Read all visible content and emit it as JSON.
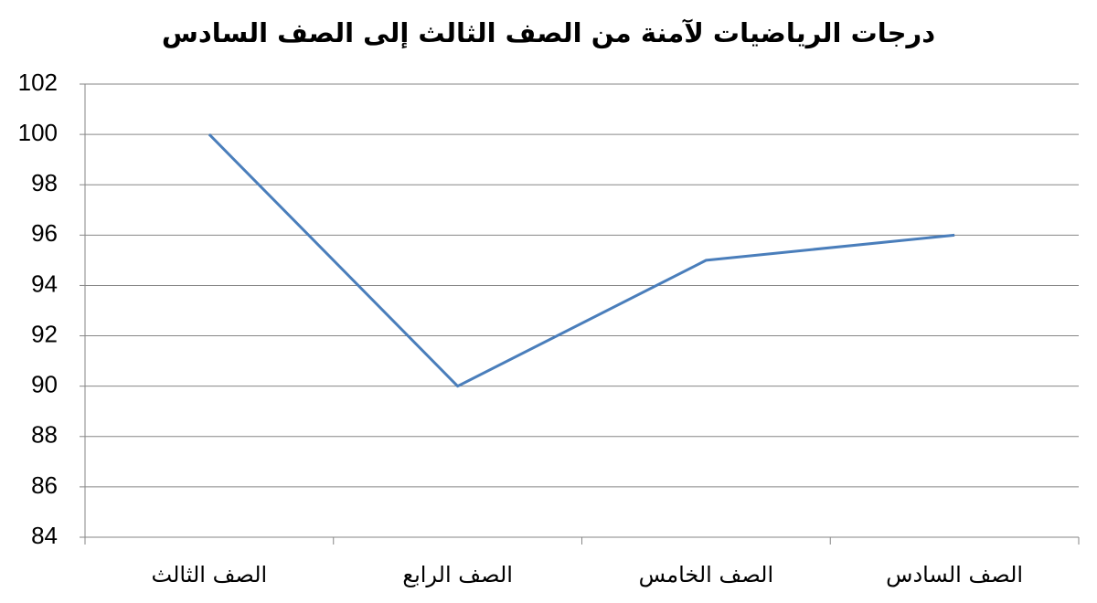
{
  "chart_data": {
    "type": "line",
    "title": "درجات الرياضيات لآمنة من الصف الثالث إلى الصف السادس",
    "categories": [
      "الصف الثالث",
      "الصف الرابع",
      "الصف الخامس",
      "الصف السادس"
    ],
    "values": [
      100,
      90,
      95,
      96
    ],
    "color": "#4a7ebb",
    "ylim": [
      84,
      102
    ],
    "yticks": [
      84,
      86,
      88,
      90,
      92,
      94,
      96,
      98,
      100,
      102
    ],
    "grid": true
  }
}
